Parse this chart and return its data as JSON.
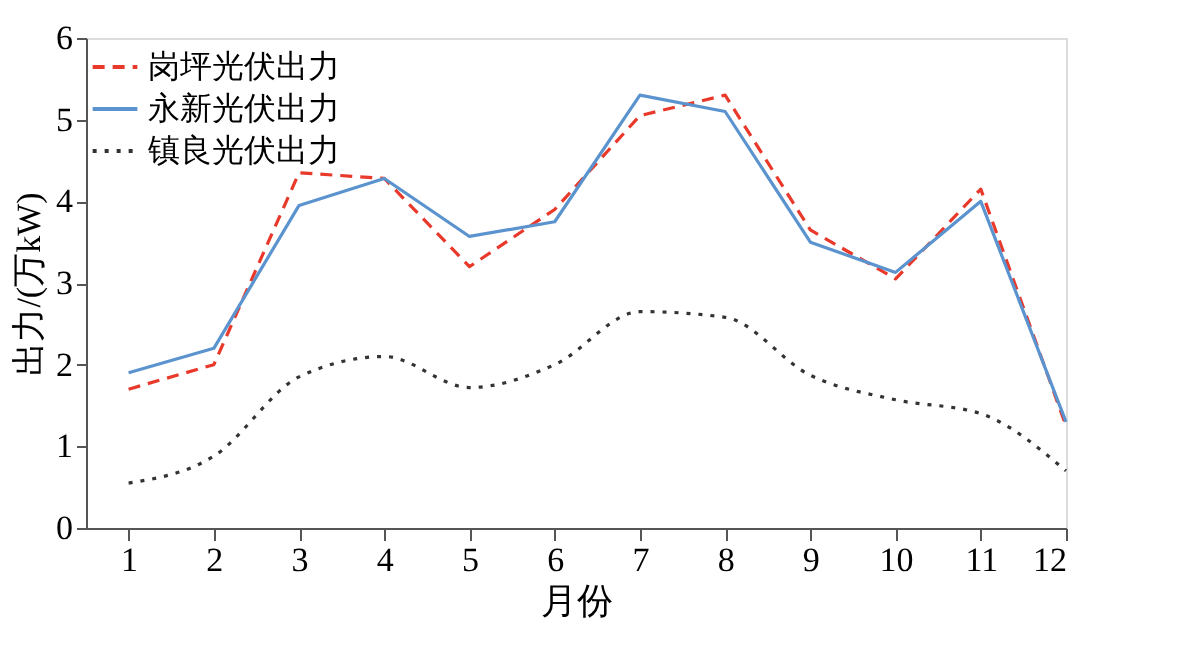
{
  "chart_data": {
    "type": "line",
    "xlabel": "月份",
    "ylabel": "出力/(万kW)",
    "x": [
      1,
      2,
      3,
      4,
      5,
      6,
      7,
      8,
      9,
      10,
      11,
      12
    ],
    "xlim": [
      0.5,
      12
    ],
    "xticks": [
      1,
      2,
      3,
      4,
      5,
      6,
      7,
      8,
      9,
      10,
      11,
      12
    ],
    "ylim": [
      0,
      6
    ],
    "yticks": [
      0,
      1,
      2,
      3,
      4,
      5,
      6
    ],
    "grid": false,
    "legend": "top left",
    "marker": "none",
    "series": [
      {
        "name": "岗坪光伏出力",
        "color": "#e8392b",
        "line_style": "dashed",
        "values": [
          1.7,
          2.0,
          4.35,
          4.28,
          3.2,
          3.9,
          5.05,
          5.3,
          3.65,
          3.05,
          4.15,
          1.25
        ]
      },
      {
        "name": "永新光伏出力",
        "color": "#5b93cf",
        "line_style": "solid",
        "values": [
          1.9,
          2.2,
          3.95,
          4.28,
          3.57,
          3.75,
          5.3,
          5.1,
          3.5,
          3.13,
          4.0,
          1.3
        ]
      },
      {
        "name": "镇良光伏出力",
        "color": "#333333",
        "line_style": "dotted",
        "values": [
          0.55,
          0.88,
          1.85,
          2.1,
          1.72,
          2.0,
          2.65,
          2.58,
          1.87,
          1.57,
          1.4,
          0.7
        ]
      }
    ]
  }
}
